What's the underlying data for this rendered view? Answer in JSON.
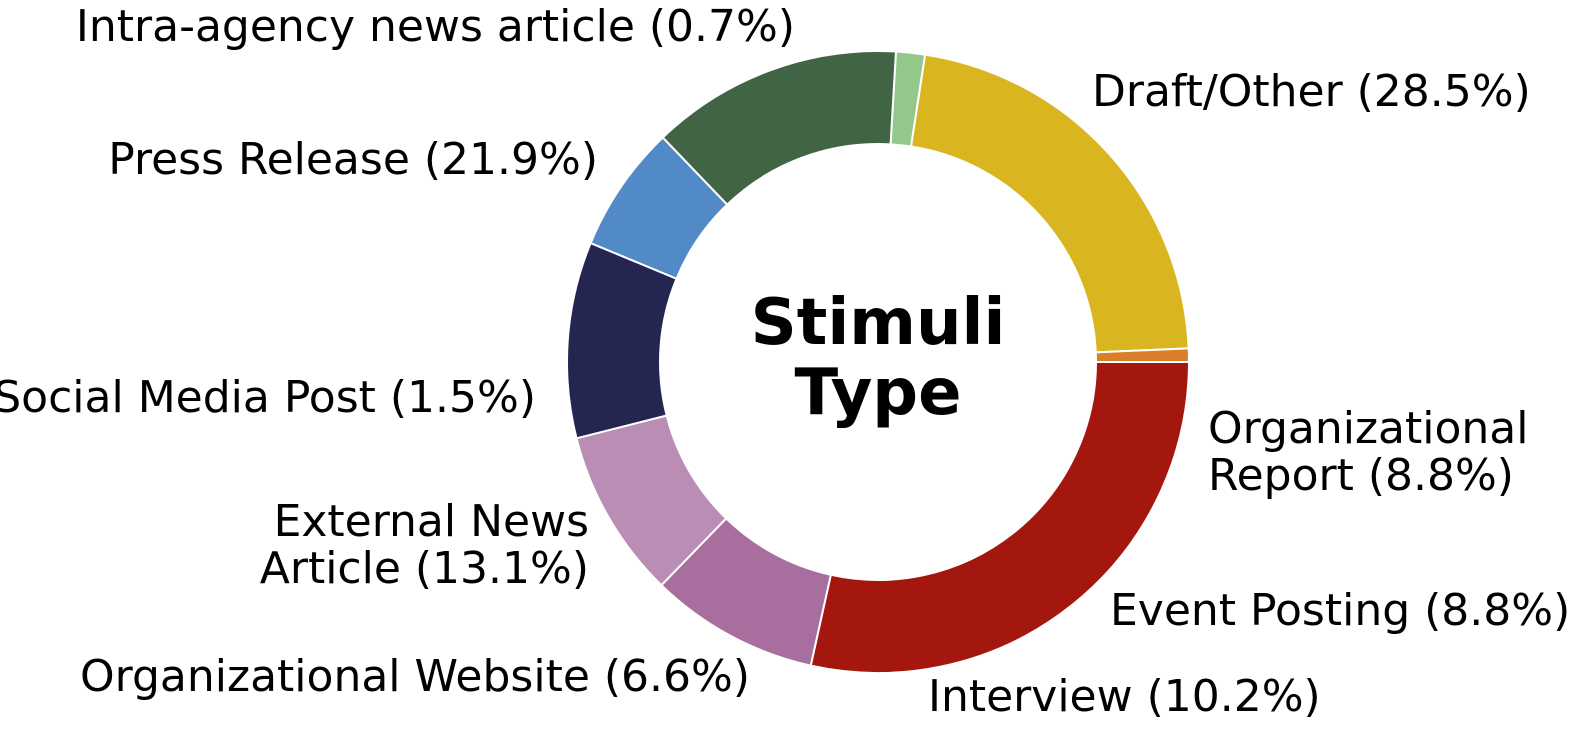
{
  "chart_data": {
    "type": "pie",
    "style": "donut",
    "center_title": [
      "Stimuli",
      "Type"
    ],
    "slices": [
      {
        "label": "Draft/Other (28.5%)",
        "value": 28.5,
        "color": "#a3170f"
      },
      {
        "label": "Organizational Report (8.8%)",
        "value": 8.8,
        "color": "#a86f9e"
      },
      {
        "label": "Event Posting (8.8%)",
        "value": 8.8,
        "color": "#ba8db4"
      },
      {
        "label": "Interview (10.2%)",
        "value": 10.2,
        "color": "#242551"
      },
      {
        "label": "Organizational Website (6.6%)",
        "value": 6.6,
        "color": "#528ac7"
      },
      {
        "label": "External News Article (13.1%)",
        "value": 13.1,
        "color": "#416445"
      },
      {
        "label": "Social Media Post (1.5%)",
        "value": 1.5,
        "color": "#92c98a"
      },
      {
        "label": "Press Release (21.9%)",
        "value": 21.9,
        "color": "#d9b520"
      },
      {
        "label": "Intra-agency news article (0.7%)",
        "value": 0.7,
        "color": "#d97f2a"
      }
    ]
  }
}
